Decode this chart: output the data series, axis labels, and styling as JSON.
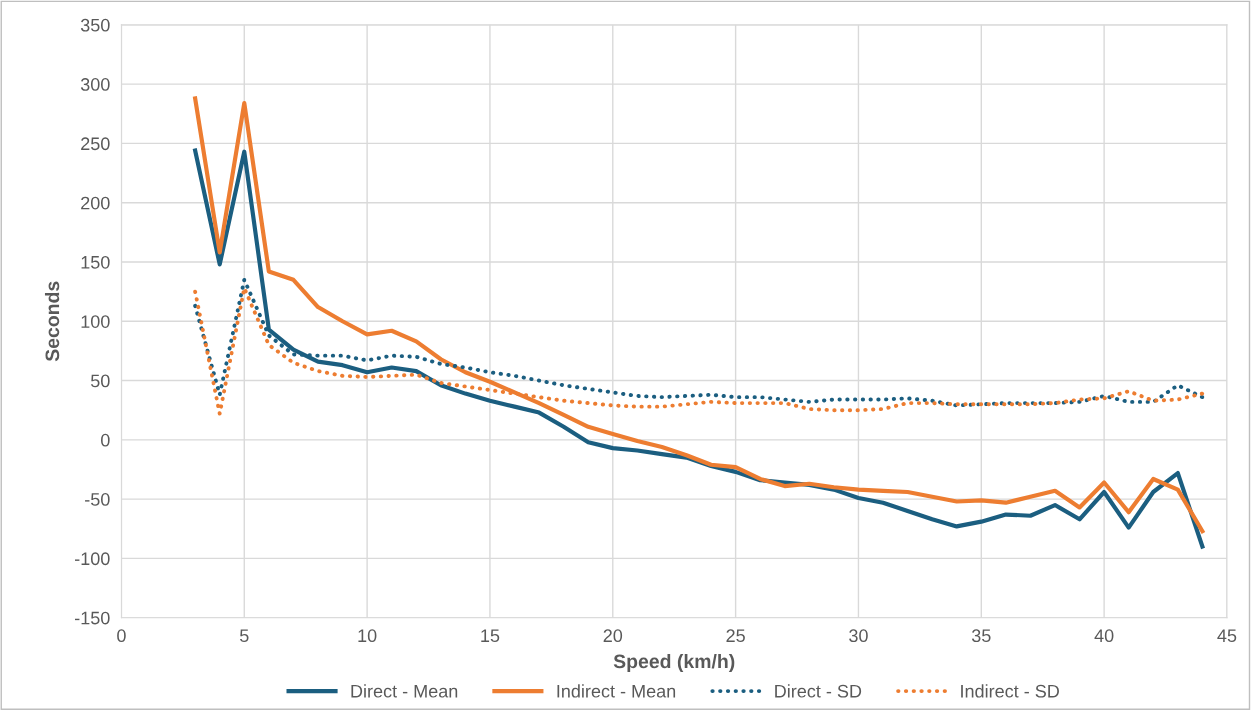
{
  "chart_data": {
    "type": "line",
    "xlabel": "Speed (km/h)",
    "ylabel": "Seconds",
    "x": [
      3,
      4,
      5,
      6,
      7,
      8,
      9,
      10,
      11,
      12,
      13,
      14,
      15,
      16,
      17,
      18,
      19,
      20,
      21,
      22,
      23,
      24,
      25,
      26,
      27,
      28,
      29,
      30,
      31,
      32,
      33,
      34,
      35,
      36,
      37,
      38,
      39,
      40,
      41,
      42,
      43,
      44
    ],
    "series": [
      {
        "name": "Direct - Mean",
        "color": "#1b5e80",
        "line_style": "solid",
        "values": [
          244,
          148,
          243,
          93,
          76,
          66,
          63,
          57,
          61,
          58,
          46,
          39,
          33,
          28,
          23,
          11,
          -2,
          -7,
          -9,
          -12,
          -15,
          -22,
          -27,
          -34,
          -36,
          -38,
          -42,
          -49,
          -53,
          -60,
          -67,
          -73,
          -69,
          -63,
          -64,
          -55,
          -67,
          -44,
          -74,
          -44,
          -28,
          -90
        ]
      },
      {
        "name": "Indirect - Mean",
        "color": "#ed7d31",
        "line_style": "solid",
        "values": [
          288,
          158,
          284,
          142,
          135,
          112,
          100,
          89,
          92,
          83,
          68,
          57,
          49,
          40,
          31,
          21,
          11,
          5,
          -1,
          -6,
          -13,
          -21,
          -23,
          -33,
          -39,
          -37,
          -40,
          -42,
          -43,
          -44,
          -48,
          -52,
          -51,
          -53,
          -48,
          -43,
          -57,
          -36,
          -61,
          -33,
          -42,
          -77
        ]
      },
      {
        "name": "Direct - SD",
        "color": "#1b5e80",
        "line_style": "dotted",
        "values": [
          113,
          38,
          135,
          88,
          72,
          71,
          71,
          67,
          71,
          70,
          64,
          61,
          57,
          54,
          50,
          46,
          43,
          40,
          37,
          36,
          37,
          38,
          36,
          36,
          34,
          32,
          34,
          34,
          34,
          35,
          33,
          29,
          30,
          31,
          31,
          31,
          32,
          37,
          32,
          32,
          46,
          36
        ]
      },
      {
        "name": "Indirect - SD",
        "color": "#ed7d31",
        "line_style": "dotted",
        "values": [
          125,
          22,
          128,
          80,
          65,
          58,
          54,
          53,
          54,
          55,
          48,
          45,
          42,
          39,
          36,
          33,
          31,
          29,
          28,
          28,
          30,
          32,
          31,
          31,
          31,
          26,
          25,
          25,
          26,
          31,
          31,
          30,
          30,
          30,
          30,
          31,
          34,
          35,
          41,
          33,
          34,
          39
        ]
      }
    ],
    "xlim": [
      0,
      45
    ],
    "xticks": [
      0,
      5,
      10,
      15,
      20,
      25,
      30,
      35,
      40,
      45
    ],
    "ylim": [
      -150,
      350
    ],
    "yticks": [
      -150,
      -100,
      -50,
      0,
      50,
      100,
      150,
      200,
      250,
      300,
      350
    ],
    "grid": true,
    "legend": "bottom",
    "marker": "none"
  }
}
